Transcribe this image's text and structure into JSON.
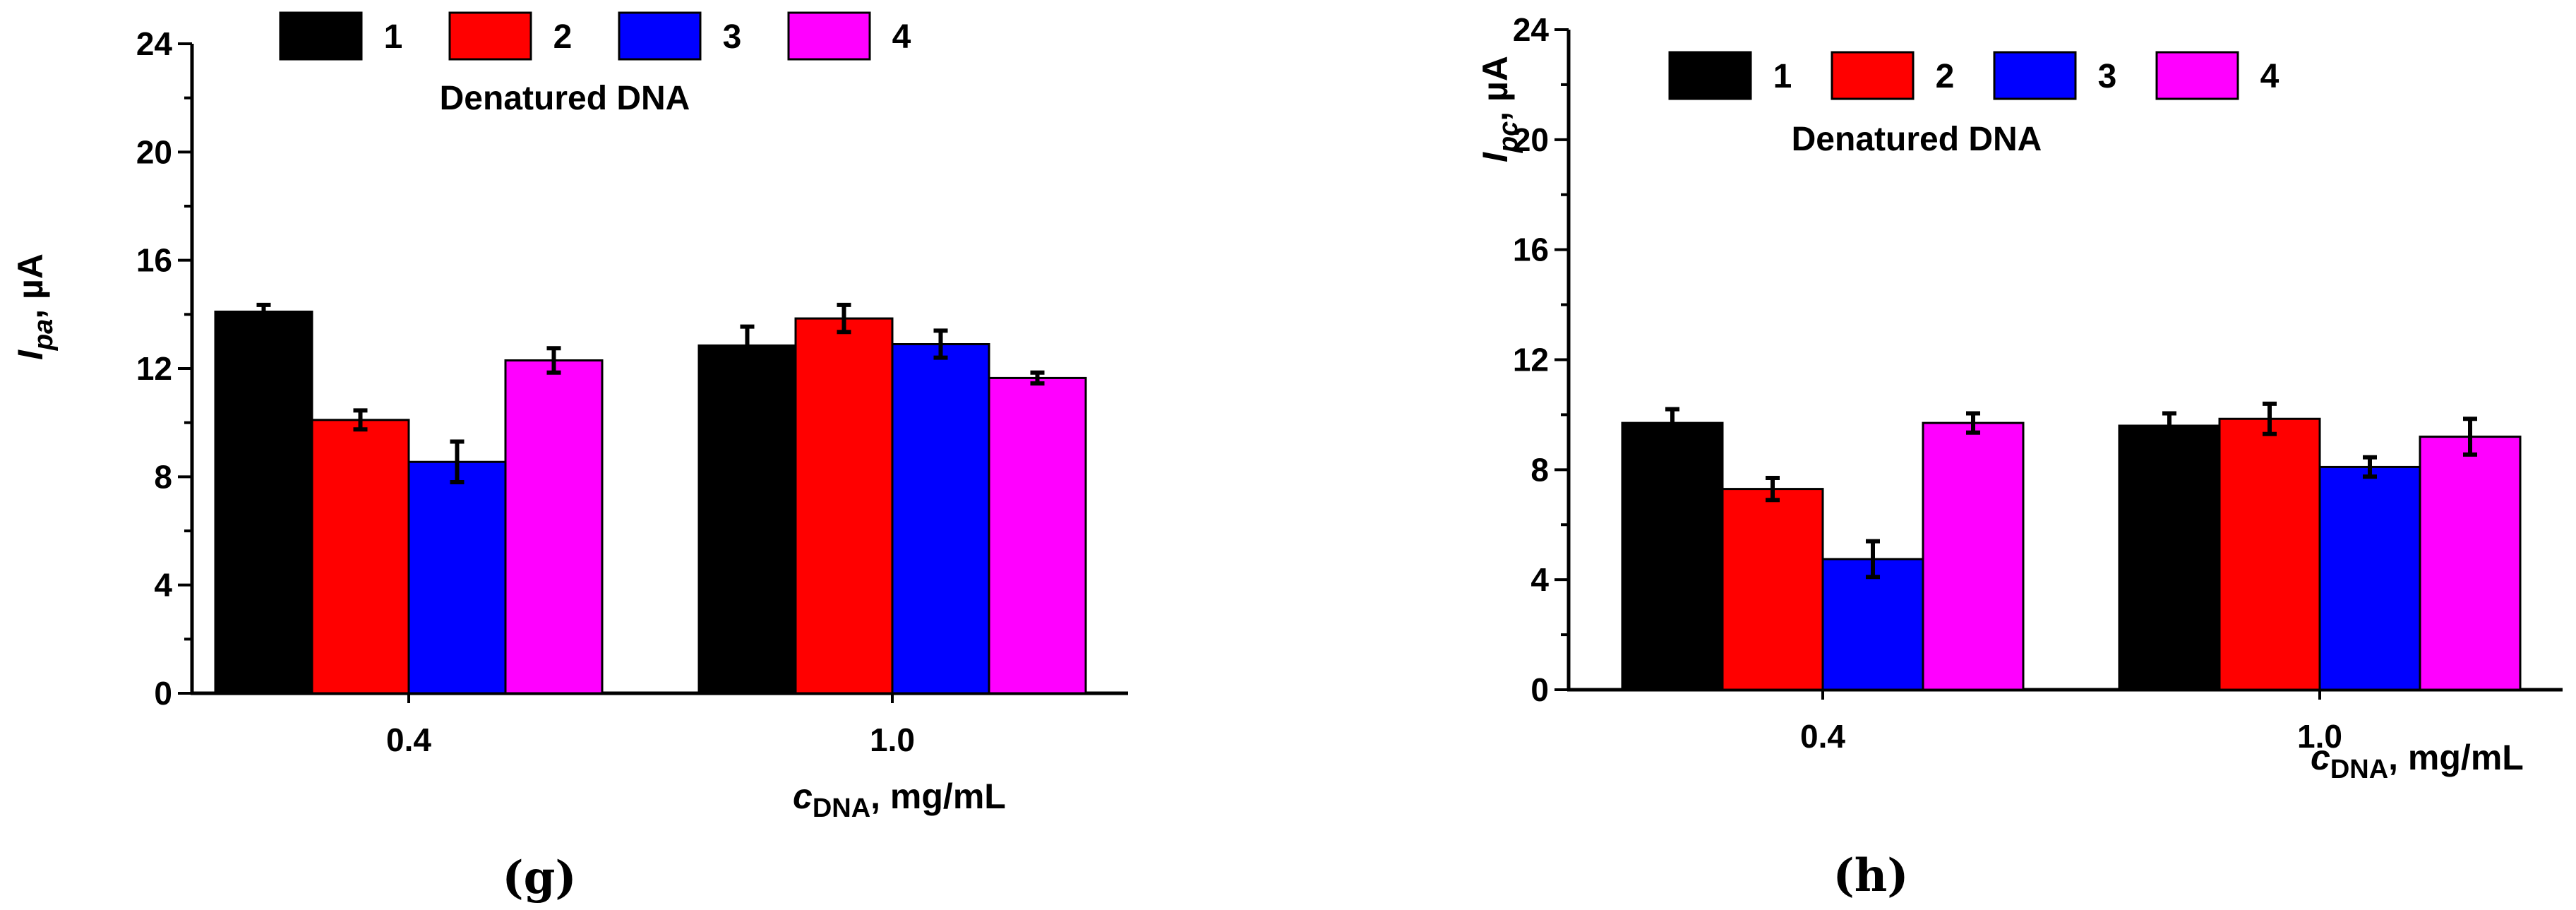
{
  "chart_data": [
    {
      "id": "g",
      "type": "bar",
      "panel_label": "(g)",
      "legend_title": "Denatured DNA",
      "ylabel": {
        "main": "I",
        "sub": "pa",
        "suffix": ", µA"
      },
      "xlabel": {
        "main": "c",
        "sub": "DNA",
        "suffix": ", mg/mL"
      },
      "ylim": [
        0,
        24
      ],
      "yticks": [
        "0",
        "4",
        "8",
        "12",
        "16",
        "20",
        "24"
      ],
      "categories": [
        "0.4",
        "1.0"
      ],
      "series": [
        {
          "name": "1",
          "color": "#000000",
          "values": [
            14.1,
            12.85
          ],
          "errors": [
            0.25,
            0.7
          ]
        },
        {
          "name": "2",
          "color": "#ff0000",
          "values": [
            10.1,
            13.85
          ],
          "errors": [
            0.35,
            0.5
          ]
        },
        {
          "name": "3",
          "color": "#0000ff",
          "values": [
            8.55,
            12.9
          ],
          "errors": [
            0.75,
            0.5
          ]
        },
        {
          "name": "4",
          "color": "#ff00ff",
          "values": [
            12.3,
            11.65
          ],
          "errors": [
            0.45,
            0.2
          ]
        }
      ]
    },
    {
      "id": "h",
      "type": "bar",
      "panel_label": "(h)",
      "legend_title": "Denatured DNA",
      "ylabel": {
        "main": "I",
        "sub": "pc",
        "suffix": ", µA"
      },
      "xlabel": {
        "main": "c",
        "sub": "DNA",
        "suffix": ", mg/mL"
      },
      "ylim": [
        0,
        24
      ],
      "yticks": [
        "0",
        "4",
        "8",
        "12",
        "16",
        "20",
        "24"
      ],
      "categories": [
        "0.4",
        "1.0"
      ],
      "series": [
        {
          "name": "1",
          "color": "#000000",
          "values": [
            9.7,
            9.6
          ],
          "errors": [
            0.5,
            0.45
          ]
        },
        {
          "name": "2",
          "color": "#ff0000",
          "values": [
            7.3,
            9.85
          ],
          "errors": [
            0.4,
            0.55
          ]
        },
        {
          "name": "3",
          "color": "#0000ff",
          "values": [
            4.75,
            8.1
          ],
          "errors": [
            0.65,
            0.35
          ]
        },
        {
          "name": "4",
          "color": "#ff00ff",
          "values": [
            9.7,
            9.2
          ],
          "errors": [
            0.35,
            0.65
          ]
        }
      ]
    }
  ]
}
